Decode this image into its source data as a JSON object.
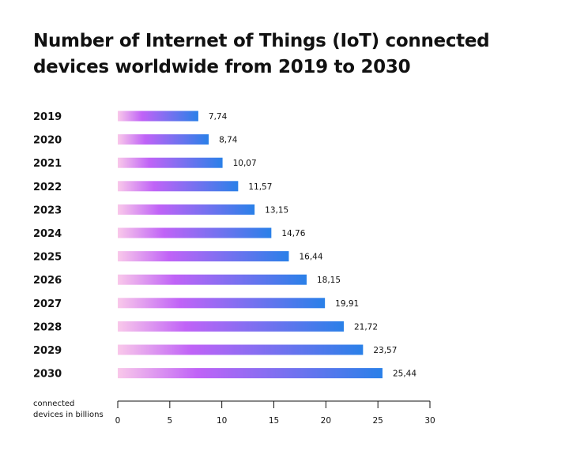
{
  "chart_data": {
    "type": "bar",
    "orientation": "horizontal",
    "title": "Number of Internet of Things (IoT) connected devices worldwide from 2019 to 2030",
    "categories": [
      "2019",
      "2020",
      "2021",
      "2022",
      "2023",
      "2024",
      "2025",
      "2026",
      "2027",
      "2028",
      "2029",
      "2030"
    ],
    "values": [
      7.74,
      8.74,
      10.07,
      11.57,
      13.15,
      14.76,
      16.44,
      18.15,
      19.91,
      21.72,
      23.57,
      25.44
    ],
    "value_labels": [
      "7,74",
      "8,74",
      "10,07",
      "11,57",
      "13,15",
      "14,76",
      "16,44",
      "18,15",
      "19,91",
      "21,72",
      "23,57",
      "25,44"
    ],
    "xlabel": "connected devices in billions",
    "xlim": [
      0,
      30
    ],
    "xticks": [
      0,
      5,
      10,
      15,
      20,
      25,
      30
    ],
    "grid": false,
    "legend": "none",
    "colors": {
      "bar_start": "#f9c8ea",
      "bar_mid": "#c063f7",
      "bar_end": "#2a80e8",
      "text": "#111111"
    }
  }
}
